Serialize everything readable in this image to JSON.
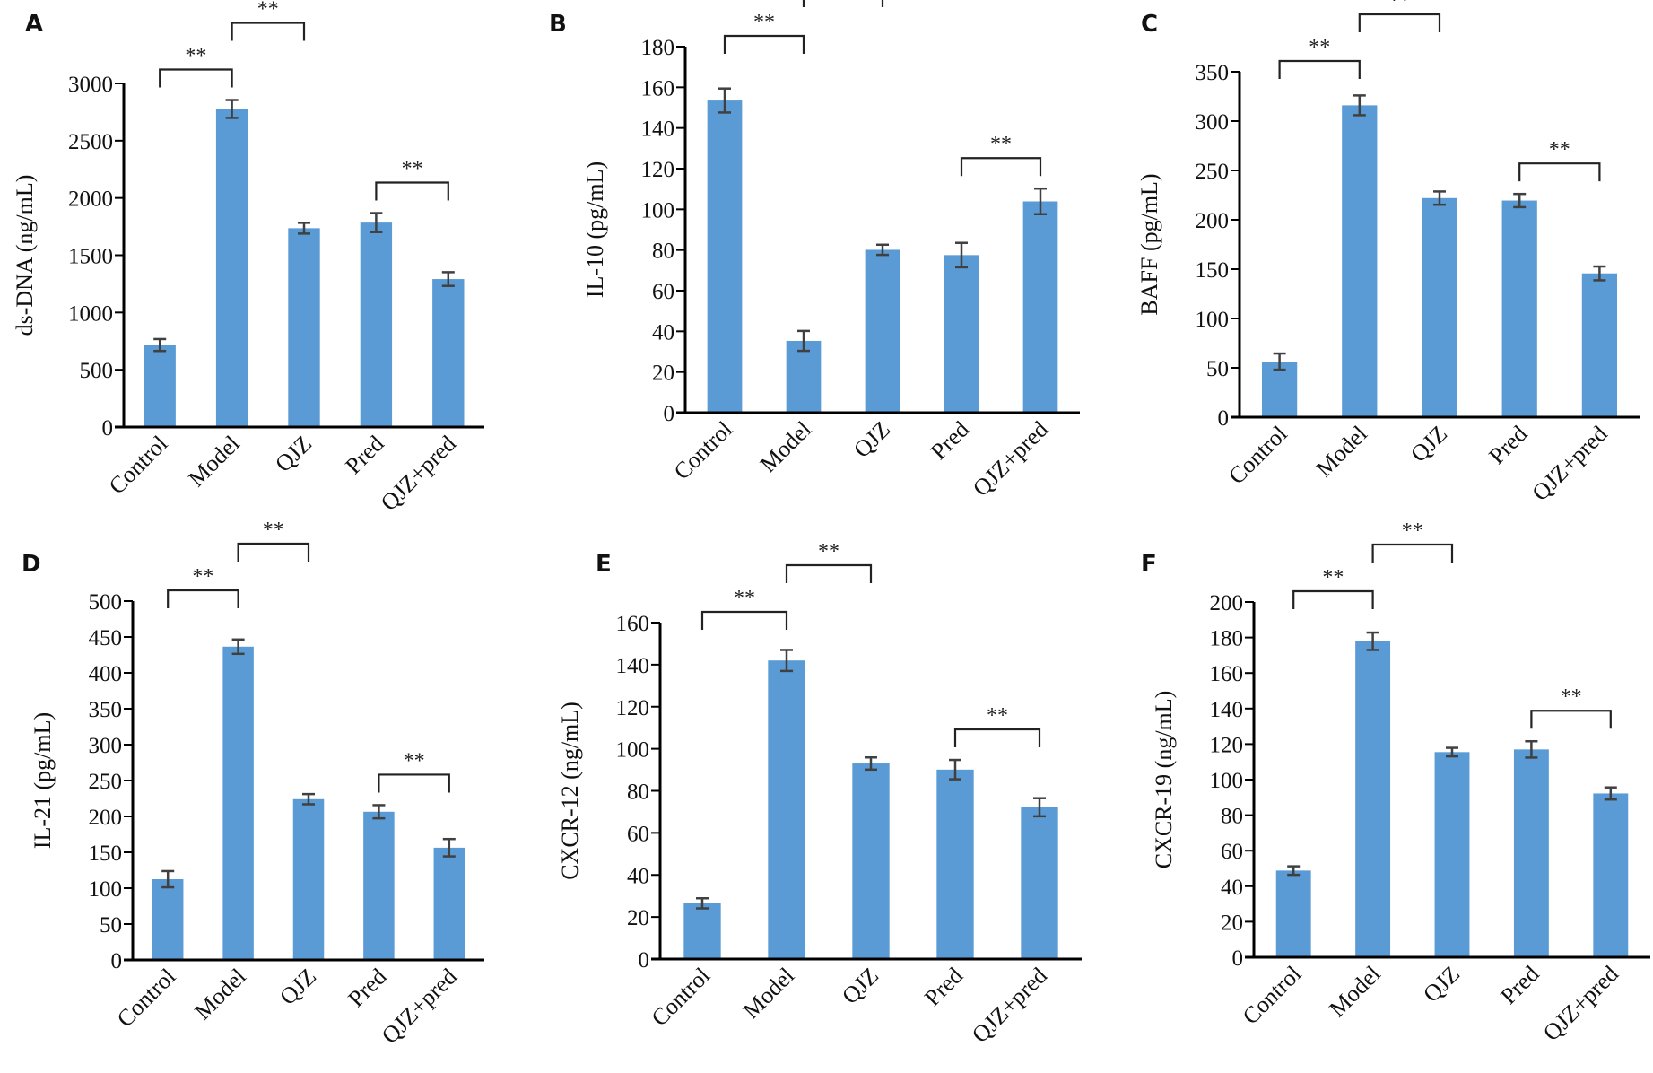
{
  "figure": {
    "colors": {
      "bar": "#5b9bd5",
      "error": "#404040",
      "axis": "#000000",
      "bracket": "#222222"
    }
  },
  "chart_data": [
    {
      "id": "A",
      "type": "bar",
      "panel_label": "A",
      "title": "",
      "xlabel": "",
      "ylabel": "ds-DNA (ng/mL)",
      "categories": [
        "Control",
        "Model",
        "QJZ",
        "Pred",
        "QJZ+pred"
      ],
      "values": [
        716,
        2777,
        1736,
        1785,
        1292
      ],
      "errors": [
        52,
        78,
        47,
        83,
        60
      ],
      "ylim": [
        0,
        3000
      ],
      "yticks": [
        0,
        500,
        1000,
        1500,
        2000,
        2500,
        3000
      ],
      "significance": [
        {
          "from": "Control",
          "to": "Model",
          "label": "**"
        },
        {
          "from": "Model",
          "to": "QJZ",
          "label": "**"
        },
        {
          "from": "Pred",
          "to": "QJZ+pred",
          "label": "**"
        }
      ],
      "grid": false
    },
    {
      "id": "B",
      "type": "bar",
      "panel_label": "B",
      "title": "",
      "xlabel": "",
      "ylabel": "IL-10 (pg/mL)",
      "categories": [
        "Control",
        "Model",
        "QJZ",
        "Pred",
        "QJZ+pred"
      ],
      "values": [
        153.5,
        35.3,
        80.1,
        77.5,
        103.9
      ],
      "errors": [
        5.9,
        4.9,
        2.5,
        6.0,
        6.3
      ],
      "ylim": [
        0,
        180
      ],
      "yticks": [
        0,
        20,
        40,
        60,
        80,
        100,
        120,
        140,
        160,
        180
      ],
      "significance": [
        {
          "from": "Control",
          "to": "Model",
          "label": "**"
        },
        {
          "from": "Model",
          "to": "QJZ",
          "label": "**"
        },
        {
          "from": "Pred",
          "to": "QJZ+pred",
          "label": "**"
        }
      ],
      "grid": false
    },
    {
      "id": "C",
      "type": "bar",
      "panel_label": "C",
      "title": "",
      "xlabel": "",
      "ylabel": "BAFF (pg/mL)",
      "categories": [
        "Control",
        "Model",
        "QJZ",
        "Pred",
        "QJZ+pred"
      ],
      "values": [
        56.3,
        316,
        222,
        219.5,
        145.7
      ],
      "errors": [
        8.2,
        10,
        6.7,
        6.7,
        7
      ],
      "ylim": [
        0,
        350
      ],
      "yticks": [
        0,
        50,
        100,
        150,
        200,
        250,
        300,
        350
      ],
      "significance": [
        {
          "from": "Control",
          "to": "Model",
          "label": "**"
        },
        {
          "from": "Model",
          "to": "QJZ",
          "label": "**"
        },
        {
          "from": "Pred",
          "to": "QJZ+pred",
          "label": "**"
        }
      ],
      "grid": false
    },
    {
      "id": "D",
      "type": "bar",
      "panel_label": "D",
      "title": "",
      "xlabel": "",
      "ylabel": "IL-21 (pg/mL)",
      "categories": [
        "Control",
        "Model",
        "QJZ",
        "Pred",
        "QJZ+pred"
      ],
      "values": [
        112.5,
        436.5,
        224,
        206.5,
        156.4
      ],
      "errors": [
        11.3,
        10,
        7.1,
        9.2,
        12.1
      ],
      "ylim": [
        0,
        500
      ],
      "yticks": [
        0,
        50,
        100,
        150,
        200,
        250,
        300,
        350,
        400,
        450,
        500
      ],
      "significance": [
        {
          "from": "Control",
          "to": "Model",
          "label": "**"
        },
        {
          "from": "Model",
          "to": "QJZ",
          "label": "**"
        },
        {
          "from": "Pred",
          "to": "QJZ+pred",
          "label": "**"
        }
      ],
      "grid": false
    },
    {
      "id": "E",
      "type": "bar",
      "panel_label": "E",
      "title": "",
      "xlabel": "",
      "ylabel": "CXCR-12 (ng/mL)",
      "categories": [
        "Control",
        "Model",
        "QJZ",
        "Pred",
        "QJZ+pred"
      ],
      "values": [
        26.5,
        142,
        93,
        90.1,
        72.2
      ],
      "errors": [
        2.4,
        5,
        2.9,
        4.6,
        4.3
      ],
      "ylim": [
        0,
        160
      ],
      "yticks": [
        0,
        20,
        40,
        60,
        80,
        100,
        120,
        140,
        160
      ],
      "significance": [
        {
          "from": "Control",
          "to": "Model",
          "label": "**"
        },
        {
          "from": "Model",
          "to": "QJZ",
          "label": "**"
        },
        {
          "from": "Pred",
          "to": "QJZ+pred",
          "label": "**"
        }
      ],
      "grid": false
    },
    {
      "id": "F",
      "type": "bar",
      "panel_label": "F",
      "title": "",
      "xlabel": "",
      "ylabel": "CXCR-19 (ng/mL)",
      "categories": [
        "Control",
        "Model",
        "QJZ",
        "Pred",
        "QJZ+pred"
      ],
      "values": [
        48.8,
        177.9,
        115.5,
        117,
        92.2
      ],
      "errors": [
        2.4,
        4.9,
        2.4,
        4.6,
        3.4
      ],
      "ylim": [
        0,
        200
      ],
      "yticks": [
        0,
        20,
        40,
        60,
        80,
        100,
        120,
        140,
        160,
        180,
        200
      ],
      "significance": [
        {
          "from": "Control",
          "to": "Model",
          "label": "**"
        },
        {
          "from": "Model",
          "to": "QJZ",
          "label": "**"
        },
        {
          "from": "Pred",
          "to": "QJZ+pred",
          "label": "**"
        }
      ],
      "grid": false
    }
  ]
}
